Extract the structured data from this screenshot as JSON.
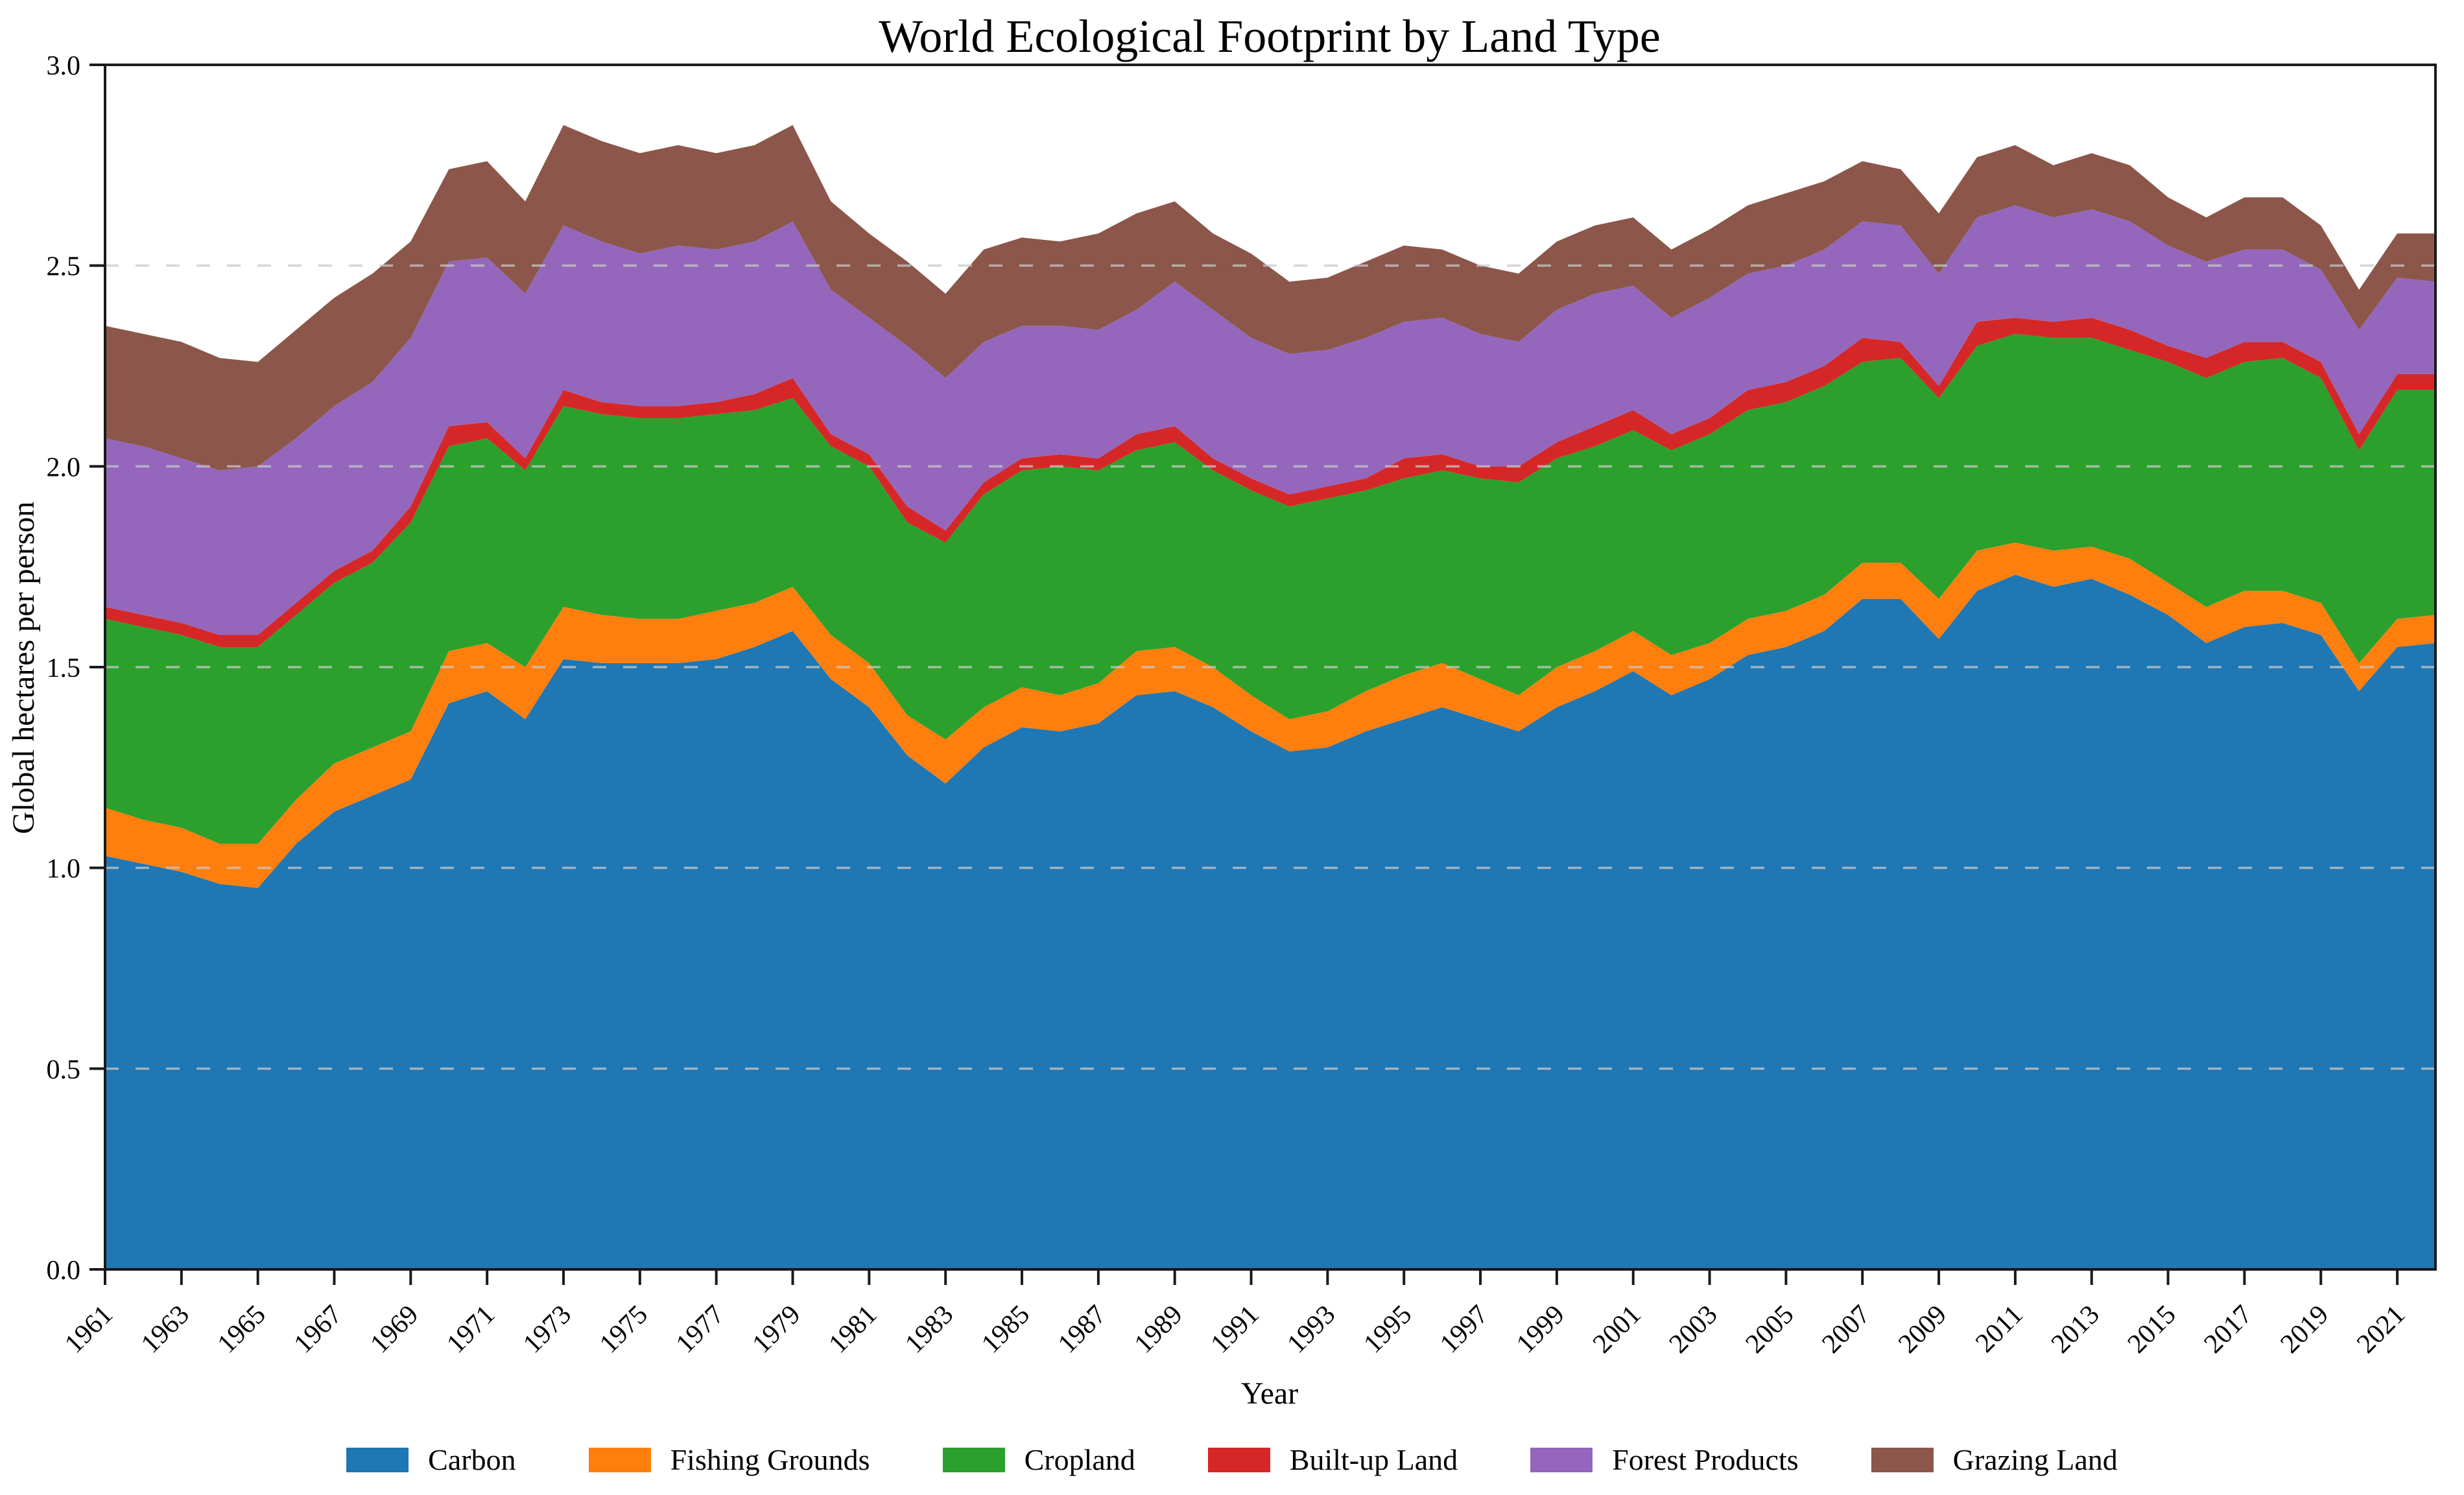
{
  "title": "World Ecological Footprint by Land Type",
  "axes": {
    "xlabel": "Year",
    "ylabel": "Global hectares per person",
    "ylim": [
      0.0,
      3.0
    ],
    "y_tick_step": 0.5,
    "x_tick_years": [
      1961,
      1963,
      1965,
      1967,
      1969,
      1971,
      1973,
      1975,
      1977,
      1979,
      1981,
      1983,
      1985,
      1987,
      1989,
      1991,
      1993,
      1995,
      1997,
      1999,
      2001,
      2003,
      2005,
      2007,
      2009,
      2011,
      2013,
      2015,
      2017,
      2019,
      2021
    ],
    "grid": "horizontal-dashed"
  },
  "legend": [
    {
      "label": "Carbon",
      "color": "#1f77b4"
    },
    {
      "label": "Fishing Grounds",
      "color": "#ff7f0e"
    },
    {
      "label": "Cropland",
      "color": "#2ca02c"
    },
    {
      "label": "Built-up Land",
      "color": "#d62728"
    },
    {
      "label": "Forest Products",
      "color": "#9467bd"
    },
    {
      "label": "Grazing Land",
      "color": "#8c564b"
    }
  ],
  "chart_data": {
    "type": "area",
    "stacked": true,
    "title": "World Ecological Footprint by Land Type",
    "xlabel": "Year",
    "ylabel": "Global hectares per person",
    "ylim": [
      0.0,
      3.0
    ],
    "legend_position": "bottom-center",
    "x": [
      1961,
      1962,
      1963,
      1964,
      1965,
      1966,
      1967,
      1968,
      1969,
      1970,
      1971,
      1972,
      1973,
      1974,
      1975,
      1976,
      1977,
      1978,
      1979,
      1980,
      1981,
      1982,
      1983,
      1984,
      1985,
      1986,
      1987,
      1988,
      1989,
      1990,
      1991,
      1992,
      1993,
      1994,
      1995,
      1996,
      1997,
      1998,
      1999,
      2000,
      2001,
      2002,
      2003,
      2004,
      2005,
      2006,
      2007,
      2008,
      2009,
      2010,
      2011,
      2012,
      2013,
      2014,
      2015,
      2016,
      2017,
      2018,
      2019,
      2020,
      2021,
      2022
    ],
    "series": [
      {
        "name": "Carbon",
        "color": "#1f77b4",
        "values": [
          1.03,
          1.01,
          0.99,
          0.96,
          0.95,
          1.06,
          1.14,
          1.18,
          1.22,
          1.41,
          1.44,
          1.37,
          1.52,
          1.51,
          1.51,
          1.51,
          1.52,
          1.55,
          1.59,
          1.47,
          1.4,
          1.28,
          1.21,
          1.3,
          1.35,
          1.34,
          1.36,
          1.43,
          1.44,
          1.4,
          1.34,
          1.29,
          1.3,
          1.34,
          1.37,
          1.4,
          1.37,
          1.34,
          1.4,
          1.44,
          1.49,
          1.43,
          1.47,
          1.53,
          1.55,
          1.59,
          1.67,
          1.67,
          1.57,
          1.69,
          1.73,
          1.7,
          1.72,
          1.68,
          1.63,
          1.56,
          1.6,
          1.61,
          1.58,
          1.44,
          1.55,
          1.56
        ]
      },
      {
        "name": "Fishing Grounds",
        "color": "#ff7f0e",
        "values": [
          0.12,
          0.11,
          0.11,
          0.1,
          0.11,
          0.11,
          0.12,
          0.12,
          0.12,
          0.13,
          0.12,
          0.13,
          0.13,
          0.12,
          0.11,
          0.11,
          0.12,
          0.11,
          0.11,
          0.11,
          0.11,
          0.1,
          0.11,
          0.1,
          0.1,
          0.09,
          0.1,
          0.11,
          0.11,
          0.1,
          0.09,
          0.08,
          0.09,
          0.1,
          0.11,
          0.11,
          0.1,
          0.09,
          0.1,
          0.1,
          0.1,
          0.1,
          0.09,
          0.09,
          0.09,
          0.09,
          0.09,
          0.09,
          0.1,
          0.1,
          0.08,
          0.09,
          0.08,
          0.09,
          0.08,
          0.09,
          0.09,
          0.08,
          0.08,
          0.07,
          0.07,
          0.07
        ]
      },
      {
        "name": "Cropland",
        "color": "#2ca02c",
        "values": [
          0.47,
          0.48,
          0.48,
          0.49,
          0.49,
          0.46,
          0.45,
          0.46,
          0.52,
          0.51,
          0.51,
          0.49,
          0.5,
          0.5,
          0.5,
          0.5,
          0.49,
          0.48,
          0.47,
          0.47,
          0.49,
          0.48,
          0.49,
          0.53,
          0.54,
          0.57,
          0.53,
          0.5,
          0.51,
          0.49,
          0.51,
          0.53,
          0.53,
          0.5,
          0.49,
          0.48,
          0.5,
          0.53,
          0.52,
          0.51,
          0.5,
          0.51,
          0.52,
          0.52,
          0.52,
          0.52,
          0.5,
          0.51,
          0.5,
          0.51,
          0.52,
          0.53,
          0.52,
          0.52,
          0.55,
          0.57,
          0.57,
          0.58,
          0.56,
          0.53,
          0.57,
          0.56
        ]
      },
      {
        "name": "Built-up Land",
        "color": "#d62728",
        "values": [
          0.03,
          0.03,
          0.03,
          0.03,
          0.03,
          0.03,
          0.03,
          0.03,
          0.04,
          0.05,
          0.04,
          0.03,
          0.04,
          0.03,
          0.03,
          0.03,
          0.03,
          0.04,
          0.05,
          0.03,
          0.03,
          0.04,
          0.03,
          0.03,
          0.03,
          0.03,
          0.03,
          0.04,
          0.04,
          0.03,
          0.03,
          0.03,
          0.03,
          0.03,
          0.05,
          0.04,
          0.03,
          0.04,
          0.04,
          0.05,
          0.05,
          0.04,
          0.04,
          0.05,
          0.05,
          0.05,
          0.06,
          0.04,
          0.03,
          0.06,
          0.04,
          0.04,
          0.05,
          0.05,
          0.04,
          0.05,
          0.05,
          0.04,
          0.04,
          0.04,
          0.04,
          0.04
        ]
      },
      {
        "name": "Forest Products",
        "color": "#9467bd",
        "values": [
          0.42,
          0.42,
          0.41,
          0.41,
          0.42,
          0.41,
          0.41,
          0.42,
          0.42,
          0.41,
          0.41,
          0.41,
          0.41,
          0.4,
          0.38,
          0.4,
          0.38,
          0.38,
          0.39,
          0.36,
          0.34,
          0.4,
          0.38,
          0.35,
          0.33,
          0.32,
          0.32,
          0.31,
          0.36,
          0.37,
          0.35,
          0.35,
          0.34,
          0.35,
          0.34,
          0.34,
          0.33,
          0.31,
          0.33,
          0.33,
          0.31,
          0.29,
          0.3,
          0.29,
          0.29,
          0.29,
          0.29,
          0.29,
          0.28,
          0.26,
          0.28,
          0.26,
          0.27,
          0.27,
          0.25,
          0.24,
          0.23,
          0.23,
          0.23,
          0.26,
          0.24,
          0.23
        ]
      },
      {
        "name": "Grazing Land",
        "color": "#8c564b",
        "values": [
          0.28,
          0.28,
          0.29,
          0.28,
          0.26,
          0.27,
          0.27,
          0.27,
          0.24,
          0.23,
          0.24,
          0.23,
          0.25,
          0.25,
          0.25,
          0.25,
          0.24,
          0.24,
          0.24,
          0.22,
          0.21,
          0.21,
          0.21,
          0.23,
          0.22,
          0.21,
          0.24,
          0.24,
          0.2,
          0.19,
          0.21,
          0.18,
          0.18,
          0.19,
          0.19,
          0.17,
          0.17,
          0.17,
          0.17,
          0.17,
          0.17,
          0.17,
          0.17,
          0.17,
          0.18,
          0.17,
          0.15,
          0.14,
          0.15,
          0.15,
          0.15,
          0.13,
          0.14,
          0.14,
          0.12,
          0.11,
          0.13,
          0.13,
          0.11,
          0.1,
          0.11,
          0.12
        ]
      }
    ]
  }
}
